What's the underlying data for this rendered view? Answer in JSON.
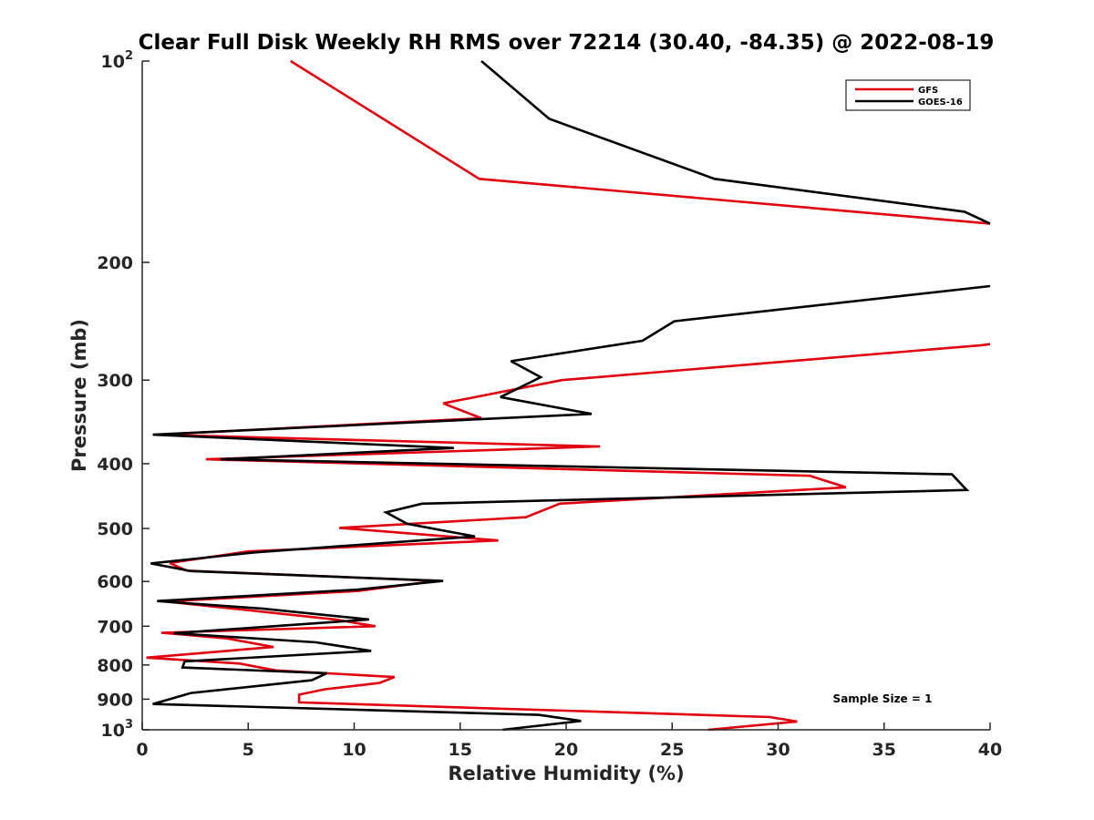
{
  "chart_data": {
    "type": "line",
    "title": "Clear Full Disk Weekly RH RMS over 72214 (30.40, -84.35) @ 2022-08-19",
    "xlabel": "Relative Humidity (%)",
    "ylabel": "Pressure (mb)",
    "xlim": [
      0,
      40
    ],
    "ylim": [
      100,
      1000
    ],
    "yscale": "log",
    "y_reversed": true,
    "x_ticks": [
      0,
      5,
      10,
      15,
      20,
      25,
      30,
      35,
      40
    ],
    "x_tick_labels": [
      "0",
      "5",
      "10",
      "15",
      "20",
      "25",
      "30",
      "35",
      "40"
    ],
    "y_ticks": [
      {
        "value": 100,
        "base": "10",
        "exp": "2"
      },
      {
        "value": 200,
        "label": "200"
      },
      {
        "value": 300,
        "label": "300"
      },
      {
        "value": 400,
        "label": "400"
      },
      {
        "value": 500,
        "label": "500"
      },
      {
        "value": 600,
        "label": "600"
      },
      {
        "value": 700,
        "label": "700"
      },
      {
        "value": 800,
        "label": "800"
      },
      {
        "value": 900,
        "label": "900"
      },
      {
        "value": 1000,
        "base": "10",
        "exp": "3"
      }
    ],
    "legend_position": "top-right",
    "annotation": "Sample Size = 1",
    "series": [
      {
        "name": "GFS",
        "color": "#e0000f",
        "points": [
          [
            7.0,
            100
          ],
          [
            15.9,
            150
          ],
          [
            40.0,
            175
          ],
          [
            null,
            null
          ],
          [
            40.0,
            265
          ],
          [
            39.6,
            266
          ],
          [
            19.8,
            300
          ],
          [
            14.2,
            325
          ],
          [
            16.0,
            342
          ],
          [
            0.7,
            362
          ],
          [
            21.6,
            377
          ],
          [
            3.0,
            394
          ],
          [
            31.5,
            417
          ],
          [
            33.2,
            434
          ],
          [
            19.7,
            459
          ],
          [
            18.1,
            481
          ],
          [
            9.3,
            499
          ],
          [
            16.8,
            521
          ],
          [
            5.0,
            541
          ],
          [
            1.3,
            563
          ],
          [
            2.1,
            578
          ],
          [
            13.9,
            599
          ],
          [
            10.2,
            620
          ],
          [
            1.1,
            643
          ],
          [
            4.5,
            660
          ],
          [
            9.1,
            684
          ],
          [
            11.0,
            700
          ],
          [
            0.9,
            716
          ],
          [
            4.0,
            730
          ],
          [
            6.2,
            752
          ],
          [
            0.2,
            780
          ],
          [
            4.6,
            796
          ],
          [
            6.3,
            815
          ],
          [
            11.9,
            834
          ],
          [
            11.2,
            851
          ],
          [
            8.6,
            870
          ],
          [
            7.4,
            886
          ],
          [
            7.4,
            910
          ],
          [
            29.6,
            957
          ],
          [
            30.9,
            972
          ],
          [
            26.7,
            1000
          ]
        ]
      },
      {
        "name": "GOES-16",
        "color": "#000000",
        "points": [
          [
            16.0,
            100
          ],
          [
            19.2,
            122
          ],
          [
            27.0,
            150
          ],
          [
            38.8,
            168
          ],
          [
            40.0,
            175
          ],
          [
            null,
            null
          ],
          [
            40.0,
            217
          ],
          [
            25.1,
            245
          ],
          [
            23.6,
            262
          ],
          [
            17.4,
            281
          ],
          [
            18.8,
            297
          ],
          [
            16.9,
            318
          ],
          [
            21.2,
            337
          ],
          [
            0.5,
            362
          ],
          [
            14.7,
            379
          ],
          [
            3.7,
            394
          ],
          [
            38.2,
            415
          ],
          [
            38.9,
            438
          ],
          [
            13.2,
            459
          ],
          [
            11.5,
            473
          ],
          [
            12.5,
            492
          ],
          [
            15.7,
            514
          ],
          [
            5.3,
            543
          ],
          [
            0.4,
            564
          ],
          [
            2.3,
            579
          ],
          [
            14.2,
            599
          ],
          [
            10.2,
            617
          ],
          [
            0.7,
            642
          ],
          [
            5.7,
            659
          ],
          [
            10.7,
            684
          ],
          [
            1.5,
            717
          ],
          [
            8.2,
            740
          ],
          [
            10.8,
            762
          ],
          [
            2.0,
            790
          ],
          [
            1.9,
            807
          ],
          [
            8.7,
            823
          ],
          [
            8.0,
            843
          ],
          [
            2.3,
            881
          ],
          [
            0.5,
            915
          ],
          [
            18.7,
            950
          ],
          [
            20.7,
            970
          ],
          [
            17.0,
            1000
          ]
        ]
      }
    ]
  }
}
